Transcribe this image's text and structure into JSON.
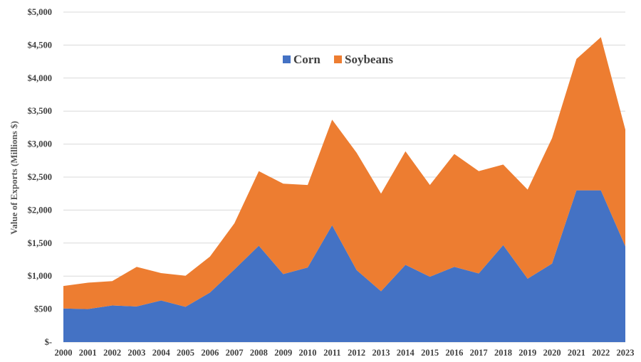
{
  "chart_data": {
    "type": "area",
    "stacked": true,
    "title": "",
    "xlabel": "",
    "ylabel": "Value of Exports (Millions $)",
    "ylim": [
      0,
      5000
    ],
    "yticks": [
      0,
      500,
      1000,
      1500,
      2000,
      2500,
      3000,
      3500,
      4000,
      4500,
      5000
    ],
    "ytick_labels": [
      "$-",
      "$500",
      "$1,000",
      "$1,500",
      "$2,000",
      "$2,500",
      "$3,000",
      "$3,500",
      "$4,000",
      "$4,500",
      "$5,000"
    ],
    "grid": true,
    "legend_position": "top-center",
    "categories": [
      "2000",
      "2001",
      "2002",
      "2003",
      "2004",
      "2005",
      "2006",
      "2007",
      "2008",
      "2009",
      "2010",
      "2011",
      "2012",
      "2013",
      "2014",
      "2015",
      "2016",
      "2017",
      "2018",
      "2019",
      "2020",
      "2021",
      "2022",
      "2023"
    ],
    "series": [
      {
        "name": "Corn",
        "color": "#4472c4",
        "values": [
          510,
          500,
          555,
          540,
          630,
          535,
          750,
          1100,
          1460,
          1030,
          1130,
          1770,
          1090,
          770,
          1170,
          990,
          1140,
          1040,
          1470,
          960,
          1190,
          2300,
          2300,
          1450
        ]
      },
      {
        "name": "Soybeans",
        "color": "#ed7d31",
        "values": [
          340,
          400,
          370,
          600,
          415,
          470,
          545,
          700,
          1130,
          1370,
          1250,
          1600,
          1780,
          1480,
          1720,
          1390,
          1710,
          1550,
          1220,
          1350,
          1900,
          1990,
          2320,
          1770
        ]
      }
    ]
  }
}
